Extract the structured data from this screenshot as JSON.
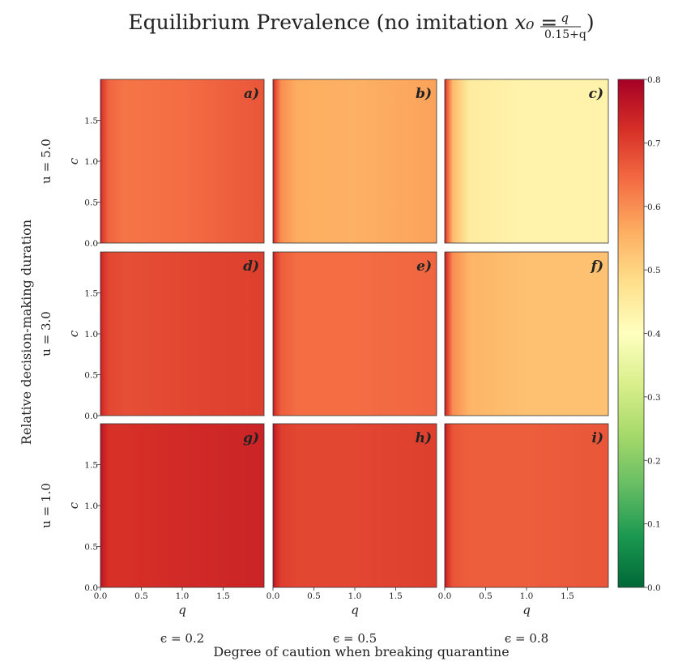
{
  "chart_data": {
    "type": "heatmap",
    "title": "Equilibrium Prevalence (no imitation x₀ = q / (0.15+q))",
    "title_parts": {
      "main": "Equilibrium Prevalence (no imitation ",
      "math": "x₀ =",
      "frac_num": "q",
      "frac_den": "0.15+q",
      "close": ")"
    },
    "supxlabel": "Degree of caution when breaking quarantine",
    "supylabel": "Relative decision-making duration",
    "xlabel": "q",
    "ylabel": "c",
    "xlim": [
      0,
      2
    ],
    "ylim": [
      0,
      2
    ],
    "x_ticks": [
      "0.0",
      "0.5",
      "1.0",
      "1.5"
    ],
    "y_ticks": [
      "0.0",
      "0.5",
      "1.0",
      "1.5"
    ],
    "rows": [
      {
        "label": "u = 5.0",
        "u": 5.0
      },
      {
        "label": "u = 3.0",
        "u": 3.0
      },
      {
        "label": "u = 1.0",
        "u": 1.0
      }
    ],
    "columns": [
      {
        "label": "ϵ = 0.2",
        "epsilon": 0.2
      },
      {
        "label": "ϵ = 0.5",
        "epsilon": 0.5
      },
      {
        "label": "ϵ = 0.8",
        "epsilon": 0.8
      }
    ],
    "panels": [
      {
        "label": "a)",
        "row": 0,
        "col": 0,
        "profile": [
          [
            0.0,
            0.75
          ],
          [
            0.03,
            0.7
          ],
          [
            0.1,
            0.65
          ],
          [
            0.3,
            0.63
          ],
          [
            1.0,
            0.64
          ],
          [
            2.0,
            0.67
          ]
        ]
      },
      {
        "label": "b)",
        "row": 0,
        "col": 1,
        "profile": [
          [
            0.0,
            0.75
          ],
          [
            0.03,
            0.68
          ],
          [
            0.1,
            0.6
          ],
          [
            0.3,
            0.56
          ],
          [
            1.0,
            0.555
          ],
          [
            2.0,
            0.575
          ]
        ]
      },
      {
        "label": "c)",
        "row": 0,
        "col": 2,
        "profile": [
          [
            0.0,
            0.75
          ],
          [
            0.03,
            0.66
          ],
          [
            0.1,
            0.54
          ],
          [
            0.3,
            0.45
          ],
          [
            1.0,
            0.43
          ],
          [
            2.0,
            0.43
          ]
        ]
      },
      {
        "label": "d)",
        "row": 1,
        "col": 0,
        "profile": [
          [
            0.0,
            0.76
          ],
          [
            0.03,
            0.72
          ],
          [
            0.1,
            0.69
          ],
          [
            0.3,
            0.68
          ],
          [
            1.0,
            0.69
          ],
          [
            2.0,
            0.7
          ]
        ]
      },
      {
        "label": "e)",
        "row": 1,
        "col": 1,
        "profile": [
          [
            0.0,
            0.76
          ],
          [
            0.03,
            0.71
          ],
          [
            0.1,
            0.66
          ],
          [
            0.3,
            0.64
          ],
          [
            1.0,
            0.64
          ],
          [
            2.0,
            0.65
          ]
        ]
      },
      {
        "label": "f)",
        "row": 1,
        "col": 2,
        "profile": [
          [
            0.0,
            0.76
          ],
          [
            0.03,
            0.7
          ],
          [
            0.1,
            0.6
          ],
          [
            0.3,
            0.55
          ],
          [
            1.0,
            0.53
          ],
          [
            2.0,
            0.53
          ]
        ]
      },
      {
        "label": "g)",
        "row": 2,
        "col": 0,
        "profile": [
          [
            0.0,
            0.78
          ],
          [
            0.03,
            0.75
          ],
          [
            0.1,
            0.72
          ],
          [
            0.3,
            0.72
          ],
          [
            1.0,
            0.73
          ],
          [
            2.0,
            0.74
          ]
        ]
      },
      {
        "label": "h)",
        "row": 2,
        "col": 1,
        "profile": [
          [
            0.0,
            0.78
          ],
          [
            0.03,
            0.74
          ],
          [
            0.1,
            0.7
          ],
          [
            0.3,
            0.69
          ],
          [
            1.0,
            0.69
          ],
          [
            2.0,
            0.7
          ]
        ]
      },
      {
        "label": "i)",
        "row": 2,
        "col": 2,
        "profile": [
          [
            0.0,
            0.78
          ],
          [
            0.03,
            0.72
          ],
          [
            0.1,
            0.67
          ],
          [
            0.3,
            0.66
          ],
          [
            1.0,
            0.66
          ],
          [
            2.0,
            0.67
          ]
        ]
      }
    ],
    "colorbar": {
      "min": 0.0,
      "max": 0.8,
      "ticks": [
        "0.0",
        "0.1",
        "0.2",
        "0.3",
        "0.4",
        "0.5",
        "0.6",
        "0.7",
        "0.8"
      ],
      "colormap": "RdYlGn_r",
      "stops": [
        "#006837",
        "#1a9850",
        "#66bd63",
        "#a6d96a",
        "#d9ef8b",
        "#ffffbf",
        "#fee08b",
        "#fdae61",
        "#f46d43",
        "#d73027",
        "#a50026"
      ]
    }
  }
}
